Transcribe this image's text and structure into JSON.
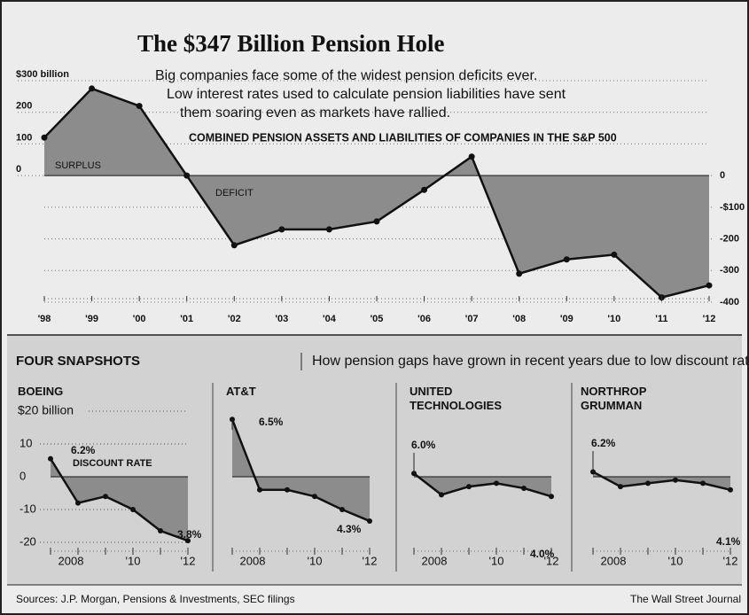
{
  "title": "The $347 Billion Pension Hole",
  "subtitle": [
    "Big companies face some of the widest pension deficits ever.",
    "Low interest rates used to calculate pension liabilities have sent",
    "them soaring even as markets have rallied."
  ],
  "chart_data": [
    {
      "type": "line",
      "title": "COMBINED PENSION ASSETS AND LIABILITIES OF COMPANIES IN THE S&P 500",
      "categories": [
        "'98",
        "'99",
        "'00",
        "'01",
        "'02",
        "'03",
        "'04",
        "'05",
        "'06",
        "'07",
        "'08",
        "'09",
        "'10",
        "'11",
        "'12"
      ],
      "values": [
        120,
        275,
        220,
        0,
        -220,
        -170,
        -170,
        -145,
        -45,
        60,
        -310,
        -265,
        -250,
        -385,
        -347
      ],
      "color": "#111111",
      "area_color": "#8c8c8c",
      "annotations": [
        "SURPLUS",
        "DEFICIT"
      ],
      "ylim": [
        -400,
        300
      ],
      "yticks": [
        {
          "value": 300,
          "label": "$300 billion"
        },
        200,
        100,
        0
      ],
      "y2lim": [
        -400,
        300
      ],
      "y2ticks": [
        0,
        {
          "value": -100,
          "label": "-$100"
        },
        -200,
        -300,
        -400
      ],
      "grid": true
    },
    {
      "type": "line",
      "title": "BOEING",
      "categories": [
        null,
        "2008",
        null,
        "'10",
        null,
        "'12"
      ],
      "values": [
        5.5,
        -8,
        -6,
        -10,
        -16.5,
        -19.5
      ],
      "start_label": "6.2%",
      "end_label": "3.8%",
      "note": "DISCOUNT RATE",
      "ylim": [
        -20,
        20
      ],
      "yticks": [
        {
          "value": 20,
          "label": "$20 billion"
        },
        10,
        0,
        -10,
        -20
      ]
    },
    {
      "type": "line",
      "title": "AT&T",
      "categories": [
        null,
        "2008",
        null,
        "'10",
        null,
        "'12"
      ],
      "values": [
        17.5,
        -4,
        -4,
        -6,
        -10,
        -13.5
      ],
      "start_label": "6.5%",
      "end_label": "4.3%",
      "ylim": [
        -20,
        20
      ]
    },
    {
      "type": "line",
      "title": "UNITED TECHNOLOGIES",
      "categories": [
        null,
        "2008",
        null,
        "'10",
        null,
        "'12"
      ],
      "values": [
        1,
        -5.5,
        -3,
        -2,
        -3.5,
        -6
      ],
      "start_label": "6.0%",
      "end_label": "4.0%",
      "ylim": [
        -20,
        20
      ]
    },
    {
      "type": "line",
      "title": "NORTHROP GRUMMAN",
      "categories": [
        null,
        "2008",
        null,
        "'10",
        null,
        "'12"
      ],
      "values": [
        1.5,
        -3,
        -2,
        -1,
        -2,
        -4
      ],
      "start_label": "6.2%",
      "end_label": "4.1%",
      "ylim": [
        -20,
        20
      ]
    }
  ],
  "snapshots_header": {
    "title": "FOUR SNAPSHOTS",
    "subtitle": "How pension gaps have grown in recent years due to low discount rates"
  },
  "sources": "Sources: J.P. Morgan, Pensions & Investments, SEC filings",
  "credit": "The Wall Street Journal"
}
